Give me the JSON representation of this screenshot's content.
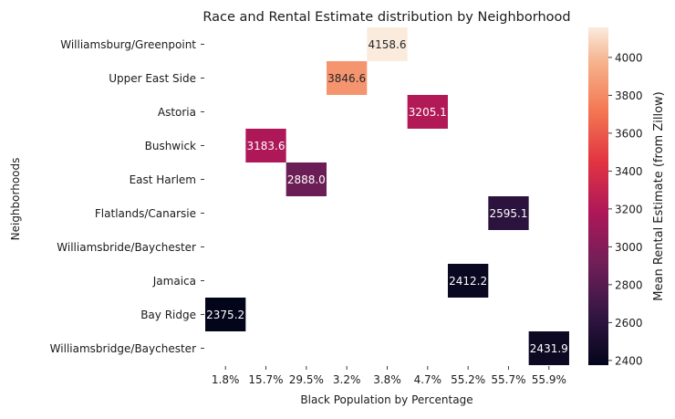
{
  "chart_data": {
    "type": "heatmap",
    "title": "Race and Rental Estimate distribution by Neighborhood",
    "xlabel": "Black Population by Percentage",
    "ylabel": "Neighborhoods",
    "x_categories": [
      "1.8%",
      "15.7%",
      "29.5%",
      "3.2%",
      "3.8%",
      "4.7%",
      "55.2%",
      "55.7%",
      "55.9%"
    ],
    "y_categories": [
      "Williamsburg/Greenpoint",
      "Upper East Side",
      "Astoria",
      "Bushwick",
      "East Harlem",
      "Flatlands/Canarsie",
      "Williamsbride/Baychester",
      "Jamaica",
      "Bay Ridge",
      "Williamsbridge/Baychester"
    ],
    "cells": [
      {
        "y": "Williamsburg/Greenpoint",
        "x": "3.8%",
        "value": 4158.6,
        "label": "4158.6"
      },
      {
        "y": "Upper East Side",
        "x": "3.2%",
        "value": 3846.6,
        "label": "3846.6"
      },
      {
        "y": "Astoria",
        "x": "4.7%",
        "value": 3205.1,
        "label": "3205.1"
      },
      {
        "y": "Bushwick",
        "x": "15.7%",
        "value": 3183.6,
        "label": "3183.6"
      },
      {
        "y": "East Harlem",
        "x": "29.5%",
        "value": 2888.0,
        "label": "2888.0"
      },
      {
        "y": "Flatlands/Canarsie",
        "x": "55.7%",
        "value": 2595.1,
        "label": "2595.1"
      },
      {
        "y": "Jamaica",
        "x": "55.2%",
        "value": 2412.2,
        "label": "2412.2"
      },
      {
        "y": "Bay Ridge",
        "x": "1.8%",
        "value": 2375.2,
        "label": "2375.2"
      },
      {
        "y": "Williamsbridge/Baychester",
        "x": "55.9%",
        "value": 2431.9,
        "label": "2431.9"
      }
    ],
    "colorbar": {
      "label": "Mean Rental Estimate (from Zillow)",
      "min": 2375.2,
      "max": 4158.6,
      "ticks": [
        "2400",
        "2600",
        "2800",
        "3000",
        "3200",
        "3400",
        "3600",
        "3800",
        "4000"
      ],
      "colormap": "rocket"
    }
  }
}
